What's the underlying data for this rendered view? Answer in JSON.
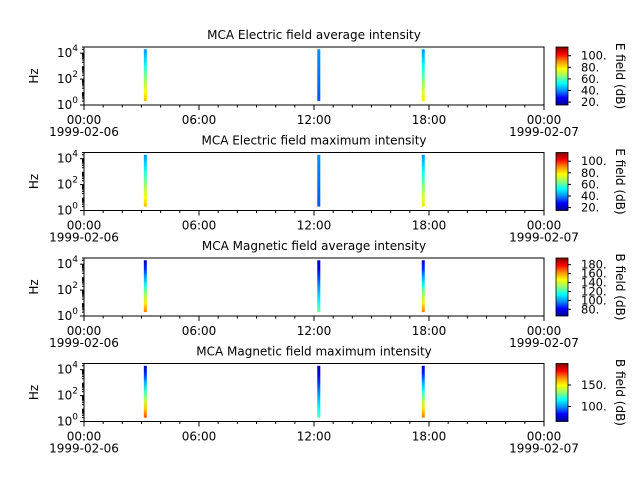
{
  "colors": {
    "colormap": [
      "#000090",
      "#0000ff",
      "#0090ff",
      "#00ffff",
      "#90ff70",
      "#ffff00",
      "#ff9000",
      "#ff0000",
      "#800000"
    ],
    "axes": "#000000",
    "background": "#ffffff"
  },
  "chart_data": [
    {
      "type": "heatmap",
      "title": "MCA  Electric field average intensity",
      "ylabel": "Hz",
      "yscale": "log",
      "ylim": [
        1,
        30000
      ],
      "yticks": [
        {
          "base": "10",
          "exp": "0"
        },
        {
          "base": "10",
          "exp": "2"
        },
        {
          "base": "10",
          "exp": "4"
        }
      ],
      "xticks": [
        "00:00",
        "06:00",
        "12:00",
        "18:00",
        "00:00"
      ],
      "xdates": [
        "1999-02-06",
        "1999-02-07"
      ],
      "xlim_hours": [
        0,
        24
      ],
      "colorbar": {
        "label": "E field (dB)",
        "ticks": [
          "20.",
          "40.",
          "60.",
          "80.",
          "100."
        ],
        "range": [
          15,
          115
        ]
      },
      "passes": [
        {
          "hour": 3.2,
          "freq_low": 2,
          "freq_high": 20000,
          "level_low": 85,
          "level_high": 40
        },
        {
          "hour": 12.25,
          "freq_low": 2,
          "freq_high": 20000,
          "level_low": 35,
          "level_high": 40
        },
        {
          "hour": 17.7,
          "freq_low": 2,
          "freq_high": 20000,
          "level_low": 80,
          "level_high": 40
        }
      ]
    },
    {
      "type": "heatmap",
      "title": "MCA  Electric field maximum intensity",
      "ylabel": "Hz",
      "yscale": "log",
      "ylim": [
        1,
        30000
      ],
      "yticks": [
        {
          "base": "10",
          "exp": "0"
        },
        {
          "base": "10",
          "exp": "2"
        },
        {
          "base": "10",
          "exp": "4"
        }
      ],
      "xticks": [
        "00:00",
        "06:00",
        "12:00",
        "18:00",
        "00:00"
      ],
      "xdates": [
        "1999-02-06",
        "1999-02-07"
      ],
      "xlim_hours": [
        0,
        24
      ],
      "colorbar": {
        "label": "E field (dB)",
        "ticks": [
          "20.",
          "40.",
          "60.",
          "80.",
          "100."
        ],
        "range": [
          15,
          115
        ]
      },
      "passes": [
        {
          "hour": 3.2,
          "freq_low": 2,
          "freq_high": 20000,
          "level_low": 85,
          "level_high": 40
        },
        {
          "hour": 12.25,
          "freq_low": 2,
          "freq_high": 20000,
          "level_low": 35,
          "level_high": 40
        },
        {
          "hour": 17.7,
          "freq_low": 2,
          "freq_high": 20000,
          "level_low": 80,
          "level_high": 40
        }
      ]
    },
    {
      "type": "heatmap",
      "title": "MCA  Magnetic field average intensity",
      "ylabel": "Hz",
      "yscale": "log",
      "ylim": [
        1,
        30000
      ],
      "yticks": [
        {
          "base": "10",
          "exp": "0"
        },
        {
          "base": "10",
          "exp": "2"
        },
        {
          "base": "10",
          "exp": "4"
        }
      ],
      "xticks": [
        "00:00",
        "06:00",
        "12:00",
        "18:00",
        "00:00"
      ],
      "xdates": [
        "1999-02-06",
        "1999-02-07"
      ],
      "xlim_hours": [
        0,
        24
      ],
      "colorbar": {
        "label": "B field (dB)",
        "ticks": [
          "80.",
          "100.",
          "120.",
          "140.",
          "160.",
          "180."
        ],
        "range": [
          65,
          195
        ]
      },
      "passes": [
        {
          "hour": 3.2,
          "freq_low": 2,
          "freq_high": 20000,
          "level_low": 165,
          "level_high": 70
        },
        {
          "hour": 12.25,
          "freq_low": 2,
          "freq_high": 20000,
          "level_low": 125,
          "level_high": 70
        },
        {
          "hour": 17.7,
          "freq_low": 2,
          "freq_high": 20000,
          "level_low": 165,
          "level_high": 70
        }
      ]
    },
    {
      "type": "heatmap",
      "title": "MCA  Magnetic field maximum intensity",
      "ylabel": "Hz",
      "yscale": "log",
      "ylim": [
        1,
        30000
      ],
      "yticks": [
        {
          "base": "10",
          "exp": "0"
        },
        {
          "base": "10",
          "exp": "2"
        },
        {
          "base": "10",
          "exp": "4"
        }
      ],
      "xticks": [
        "00:00",
        "06:00",
        "12:00",
        "18:00",
        "00:00"
      ],
      "xdates": [
        "1999-02-06",
        "1999-02-07"
      ],
      "xlim_hours": [
        0,
        24
      ],
      "colorbar": {
        "label": "B field (dB)",
        "ticks": [
          "100.",
          "150."
        ],
        "range": [
          65,
          200
        ]
      },
      "passes": [
        {
          "hour": 3.2,
          "freq_low": 2,
          "freq_high": 20000,
          "level_low": 175,
          "level_high": 70
        },
        {
          "hour": 12.25,
          "freq_low": 2,
          "freq_high": 20000,
          "level_low": 125,
          "level_high": 70
        },
        {
          "hour": 17.7,
          "freq_low": 2,
          "freq_high": 20000,
          "level_low": 170,
          "level_high": 70
        }
      ]
    }
  ]
}
